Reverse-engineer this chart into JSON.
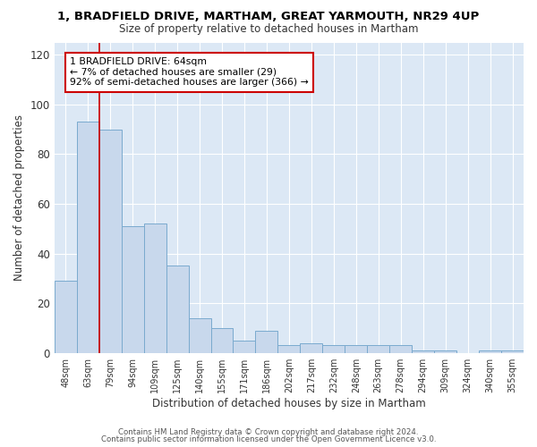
{
  "title1": "1, BRADFIELD DRIVE, MARTHAM, GREAT YARMOUTH, NR29 4UP",
  "title2": "Size of property relative to detached houses in Martham",
  "xlabel": "Distribution of detached houses by size in Martham",
  "ylabel": "Number of detached properties",
  "bar_labels": [
    "48sqm",
    "63sqm",
    "79sqm",
    "94sqm",
    "109sqm",
    "125sqm",
    "140sqm",
    "155sqm",
    "171sqm",
    "186sqm",
    "202sqm",
    "217sqm",
    "232sqm",
    "248sqm",
    "263sqm",
    "278sqm",
    "294sqm",
    "309sqm",
    "324sqm",
    "340sqm",
    "355sqm"
  ],
  "bar_values": [
    29,
    93,
    90,
    51,
    52,
    35,
    14,
    10,
    5,
    9,
    3,
    4,
    3,
    3,
    3,
    3,
    1,
    1,
    0,
    1,
    1
  ],
  "bar_color": "#c8d8ec",
  "bar_edge_color": "#7aaace",
  "fig_bg_color": "#ffffff",
  "plot_bg_color": "#dce8f5",
  "grid_color": "#ffffff",
  "red_line_x": 1.5,
  "annotation_text": "1 BRADFIELD DRIVE: 64sqm\n← 7% of detached houses are smaller (29)\n92% of semi-detached houses are larger (366) →",
  "annotation_box_facecolor": "#ffffff",
  "annotation_box_edgecolor": "#cc0000",
  "ylim": [
    0,
    125
  ],
  "yticks": [
    0,
    20,
    40,
    60,
    80,
    100,
    120
  ],
  "footnote1": "Contains HM Land Registry data © Crown copyright and database right 2024.",
  "footnote2": "Contains public sector information licensed under the Open Government Licence v3.0."
}
